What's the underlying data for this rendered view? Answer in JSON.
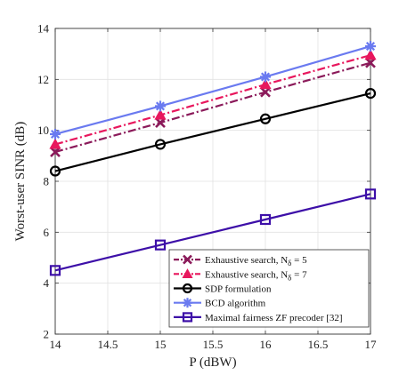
{
  "chart_data": {
    "type": "line",
    "title": "",
    "xlabel": "P (dBW)",
    "ylabel": "Worst-user SINR (dB)",
    "xlim": [
      14,
      17
    ],
    "ylim": [
      2,
      14
    ],
    "xticks": [
      "14",
      "14.5",
      "15",
      "15.5",
      "16",
      "16.5",
      "17"
    ],
    "yticks": [
      "2",
      "4",
      "6",
      "8",
      "10",
      "12",
      "14"
    ],
    "grid": true,
    "legend_position": "bottom-right",
    "x": [
      14,
      15,
      16,
      17
    ],
    "series": [
      {
        "name": "Exhaustive search, N",
        "name_sub": "δ",
        "name_suffix": " = 5",
        "values": [
          9.15,
          10.3,
          11.5,
          12.65
        ],
        "color": "#8b1a5a",
        "marker": "x",
        "dash": "dashdot"
      },
      {
        "name": "Exhaustive search, N",
        "name_sub": "δ",
        "name_suffix": " = 7",
        "values": [
          9.45,
          10.6,
          11.8,
          12.95
        ],
        "color": "#e8175d",
        "marker": "triangle",
        "dash": "dashdot"
      },
      {
        "name": "SDP formulation",
        "values": [
          8.4,
          9.45,
          10.45,
          11.45
        ],
        "color": "#000000",
        "marker": "circle",
        "dash": "solid"
      },
      {
        "name": "BCD algorithm",
        "values": [
          9.85,
          10.95,
          12.1,
          13.3
        ],
        "color": "#6a7af0",
        "marker": "star",
        "dash": "solid"
      },
      {
        "name": "Maximal fairness ZF precoder [32]",
        "values": [
          4.5,
          5.5,
          6.5,
          7.5
        ],
        "color": "#3d0fa8",
        "marker": "square",
        "dash": "solid"
      }
    ]
  }
}
